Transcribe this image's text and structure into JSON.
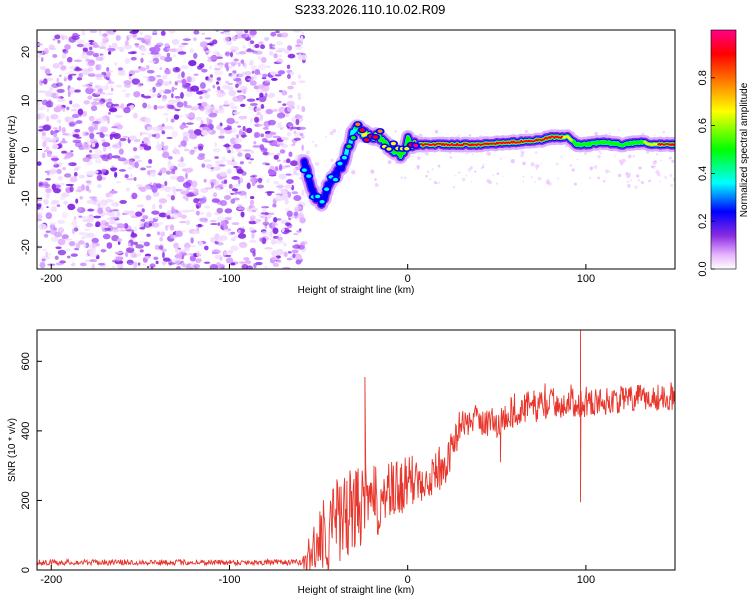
{
  "figure_title": "S233.2026.110.10.02.R09",
  "chart_data": [
    {
      "type": "heatmap",
      "title": "S233.2026.110.10.02.R09",
      "xlabel": "Height of straight line (km)",
      "ylabel": "Frequency (Hz)",
      "xlim": [
        -208,
        150
      ],
      "ylim": [
        -24.5,
        24.5
      ],
      "xticks": [
        -200,
        -100,
        0,
        100
      ],
      "yticks": [
        -20,
        -10,
        0,
        10,
        20
      ],
      "colorbar": {
        "label": "Normalized spectral amplitude",
        "range": [
          0,
          1
        ],
        "ticks": [
          0.0,
          0.2,
          0.4,
          0.6,
          0.8
        ],
        "colors": [
          "#ffffff",
          "#e6b3ff",
          "#8a2be2",
          "#0000ff",
          "#00ffff",
          "#00ff00",
          "#ffff00",
          "#ff8000",
          "#ff0000",
          "#ff0088"
        ]
      },
      "noise_region": {
        "x": [
          -208,
          -58
        ],
        "y": [
          -24.5,
          24.5
        ],
        "amplitude": "0.0-0.25"
      },
      "signal_track": {
        "x": [
          -58,
          -55,
          -52,
          -48,
          -45,
          -42,
          -38,
          -35,
          -32,
          -30,
          -28,
          -25,
          -22,
          -18,
          -15,
          -12,
          -8,
          -5,
          -2,
          0,
          3,
          8,
          20,
          40,
          60,
          75,
          80,
          85,
          90,
          95,
          100,
          110,
          120,
          130,
          140,
          150
        ],
        "freq_hz": [
          -3,
          -6,
          -10,
          -11,
          -8,
          -6,
          -4,
          -2,
          2,
          4,
          4.5,
          3.5,
          3,
          2.5,
          2.5,
          1,
          0,
          -1,
          -0.5,
          2,
          1,
          1,
          1,
          1,
          1.5,
          2,
          2.5,
          2.5,
          2.5,
          1,
          1,
          1.5,
          1,
          1.5,
          1,
          1
        ],
        "amplitude": [
          0.3,
          0.35,
          0.3,
          0.3,
          0.3,
          0.3,
          0.3,
          0.35,
          0.4,
          0.45,
          0.6,
          0.7,
          0.75,
          0.7,
          0.6,
          0.55,
          0.5,
          0.5,
          0.5,
          0.55,
          0.85,
          0.9,
          0.95,
          0.85,
          0.85,
          0.8,
          0.9,
          0.85,
          0.7,
          0.6,
          0.6,
          0.6,
          0.55,
          0.6,
          0.8,
          0.8
        ]
      }
    },
    {
      "type": "line",
      "xlabel": "Height of straight line (km)",
      "ylabel": "SNR (10 * v/v)",
      "xlim": [
        -208,
        150
      ],
      "ylim": [
        0,
        690
      ],
      "xticks": [
        -200,
        -100,
        0,
        100
      ],
      "yticks": [
        0,
        200,
        400,
        600
      ],
      "color": "#e8352b",
      "envelope": {
        "x": [
          -208,
          -100,
          -60,
          -55,
          -48,
          -42,
          -35,
          -28,
          -22,
          -15,
          -5,
          0,
          10,
          20,
          25,
          30,
          40,
          50,
          60,
          80,
          100,
          120,
          150
        ],
        "mean": [
          22,
          22,
          22,
          40,
          100,
          130,
          150,
          180,
          190,
          200,
          230,
          250,
          270,
          290,
          350,
          420,
          430,
          420,
          460,
          480,
          480,
          490,
          500
        ],
        "spread": [
          8,
          8,
          8,
          60,
          120,
          130,
          130,
          120,
          110,
          100,
          90,
          80,
          70,
          60,
          50,
          40,
          40,
          50,
          50,
          45,
          40,
          40,
          40
        ]
      },
      "spikes": [
        {
          "x": -24,
          "y": 555
        },
        {
          "x": 97,
          "y": 690
        },
        {
          "x": 97,
          "y": 195
        },
        {
          "x": 52,
          "y": 310
        }
      ]
    }
  ]
}
